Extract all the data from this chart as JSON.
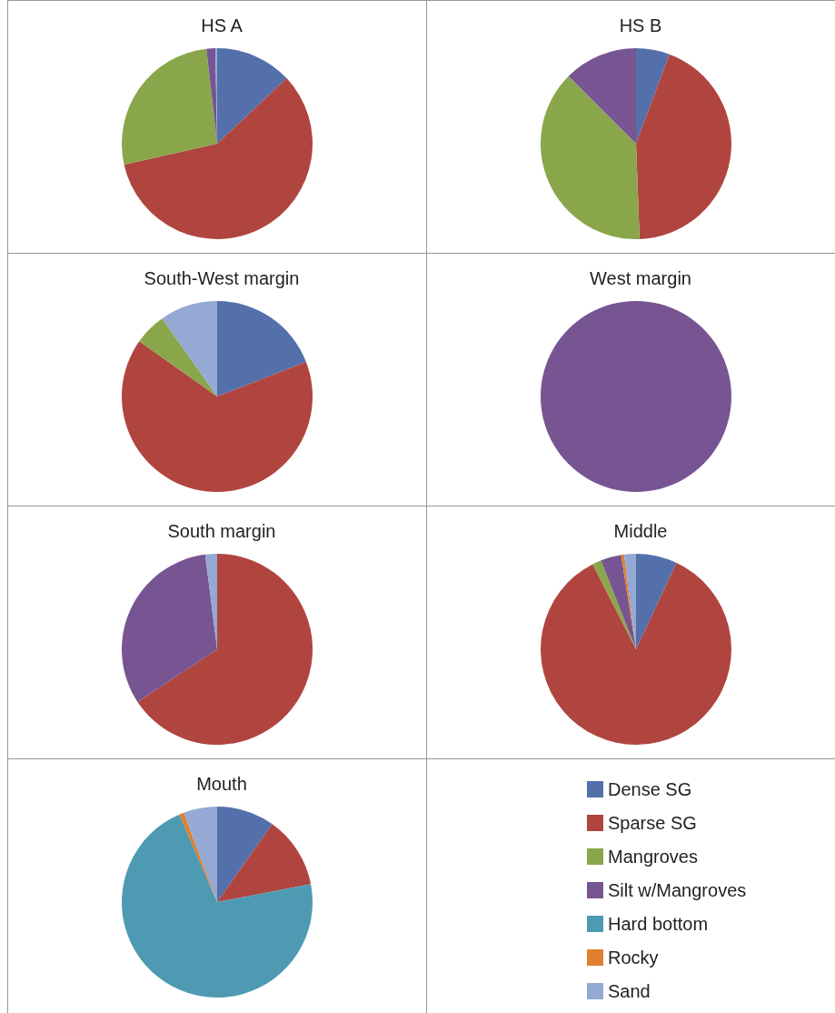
{
  "chart_data": [
    {
      "type": "pie",
      "title": "HS A",
      "categories": [
        null,
        null,
        null,
        null,
        null
      ],
      "values": [
        13,
        58.5,
        26.7,
        1.5,
        0.3
      ],
      "colors": [
        "#5470aa",
        "#b04540",
        "#8aa64b",
        "#775592",
        "#94a9d4"
      ]
    },
    {
      "type": "pie",
      "title": "HS B",
      "categories": [
        null,
        null,
        null,
        null
      ],
      "values": [
        5.7,
        43.7,
        38.1,
        12.5
      ],
      "colors": [
        "#5470aa",
        "#b04540",
        "#8aa64b",
        "#775592"
      ]
    },
    {
      "type": "pie",
      "title": "South-West margin",
      "categories": [
        null,
        null,
        null,
        null
      ],
      "values": [
        19.1,
        65.7,
        5.4,
        9.8
      ],
      "colors": [
        "#5470aa",
        "#b04540",
        "#8aa64b",
        "#94a9d4"
      ]
    },
    {
      "type": "pie",
      "title": "West margin",
      "categories": [
        null
      ],
      "values": [
        100
      ],
      "colors": [
        "#775592"
      ]
    },
    {
      "type": "pie",
      "title": "South margin",
      "categories": [
        null,
        null,
        null
      ],
      "values": [
        65.7,
        32.3,
        2
      ],
      "colors": [
        "#b04540",
        "#775592",
        "#94a9d4"
      ]
    },
    {
      "type": "pie",
      "title": "Middle",
      "categories": [
        null,
        null,
        null,
        null,
        null,
        null
      ],
      "values": [
        7,
        85.5,
        1.5,
        3.5,
        0.5,
        2
      ],
      "colors": [
        "#5470aa",
        "#b04540",
        "#8aa64b",
        "#775592",
        "#e07f2e",
        "#94a9d4"
      ]
    },
    {
      "type": "pie",
      "title": "Mouth",
      "categories": [
        "Dense SG",
        "Sparse SG",
        "Mangroves",
        "Silt w/Mangroves",
        "Hard bottom",
        "Rocky",
        "Sand"
      ],
      "values": [
        9.8,
        12.2,
        0,
        0,
        71.5,
        0.8,
        5.7
      ],
      "colors": [
        "#5470aa",
        "#b04540",
        "#8aa64b",
        "#775592",
        "#4d9ab2",
        "#e07f2e",
        "#94a9d4"
      ],
      "legend": "right"
    }
  ]
}
